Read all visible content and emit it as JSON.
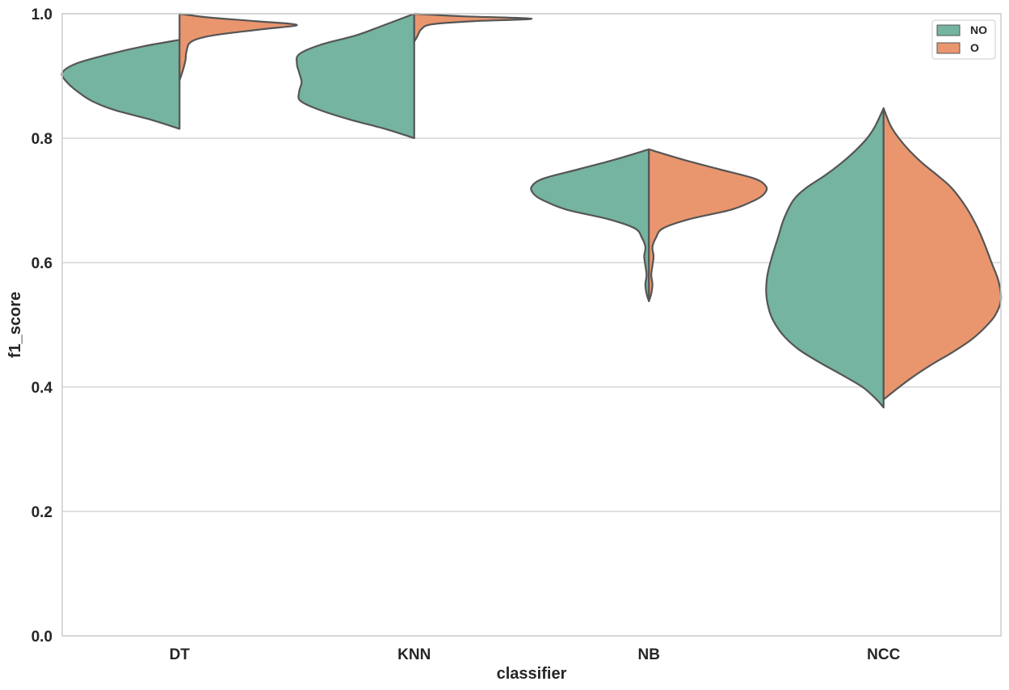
{
  "chart_data": {
    "type": "violin",
    "split": true,
    "title": "",
    "xlabel": "classifier",
    "ylabel": "f1_score",
    "categories": [
      "DT",
      "KNN",
      "NB",
      "NCC"
    ],
    "ylim": [
      0.0,
      1.0
    ],
    "yticks": [
      {
        "value": 0.0,
        "label": "0.0"
      },
      {
        "value": 0.2,
        "label": "0.2"
      },
      {
        "value": 0.4,
        "label": "0.4"
      },
      {
        "value": 0.6,
        "label": "0.6"
      },
      {
        "value": 0.8,
        "label": "0.8"
      },
      {
        "value": 1.0,
        "label": "1.0"
      }
    ],
    "grid": "horizontal",
    "legend": {
      "position": "top-right",
      "entries": [
        "NO",
        "O"
      ]
    },
    "series": [
      {
        "name": "NO",
        "color": "#74b4a0",
        "side": "left",
        "violins": [
          {
            "category": "DT",
            "min": 0.815,
            "max": 0.958,
            "mode": 0.91,
            "profile": [
              [
                0.815,
                0.0
              ],
              [
                0.83,
                0.25
              ],
              [
                0.845,
                0.55
              ],
              [
                0.86,
                0.75
              ],
              [
                0.875,
                0.87
              ],
              [
                0.89,
                0.96
              ],
              [
                0.905,
                1.0
              ],
              [
                0.92,
                0.88
              ],
              [
                0.935,
                0.6
              ],
              [
                0.948,
                0.3
              ],
              [
                0.958,
                0.0
              ]
            ]
          },
          {
            "category": "KNN",
            "min": 0.8,
            "max": 1.0,
            "mode": 0.93,
            "profile": [
              [
                0.8,
                0.0
              ],
              [
                0.815,
                0.25
              ],
              [
                0.83,
                0.55
              ],
              [
                0.845,
                0.8
              ],
              [
                0.86,
                0.97
              ],
              [
                0.875,
                0.98
              ],
              [
                0.89,
                0.96
              ],
              [
                0.905,
                0.98
              ],
              [
                0.92,
                1.0
              ],
              [
                0.935,
                0.98
              ],
              [
                0.95,
                0.8
              ],
              [
                0.965,
                0.5
              ],
              [
                0.98,
                0.28
              ],
              [
                1.0,
                0.0
              ]
            ]
          },
          {
            "category": "NB",
            "min": 0.538,
            "max": 0.782,
            "mode": 0.722,
            "profile": [
              [
                0.538,
                0.0
              ],
              [
                0.55,
                0.02
              ],
              [
                0.565,
                0.03
              ],
              [
                0.58,
                0.02
              ],
              [
                0.595,
                0.03
              ],
              [
                0.61,
                0.04
              ],
              [
                0.625,
                0.03
              ],
              [
                0.64,
                0.06
              ],
              [
                0.655,
                0.12
              ],
              [
                0.67,
                0.35
              ],
              [
                0.685,
                0.7
              ],
              [
                0.7,
                0.9
              ],
              [
                0.71,
                0.98
              ],
              [
                0.722,
                1.0
              ],
              [
                0.735,
                0.9
              ],
              [
                0.75,
                0.6
              ],
              [
                0.765,
                0.3
              ],
              [
                0.782,
                0.0
              ]
            ]
          },
          {
            "category": "NCC",
            "min": 0.367,
            "max": 0.848,
            "mode": 0.55,
            "profile": [
              [
                0.367,
                0.0
              ],
              [
                0.38,
                0.06
              ],
              [
                0.4,
                0.18
              ],
              [
                0.42,
                0.36
              ],
              [
                0.44,
                0.55
              ],
              [
                0.46,
                0.72
              ],
              [
                0.48,
                0.84
              ],
              [
                0.5,
                0.92
              ],
              [
                0.52,
                0.97
              ],
              [
                0.55,
                1.0
              ],
              [
                0.58,
                0.99
              ],
              [
                0.61,
                0.95
              ],
              [
                0.64,
                0.9
              ],
              [
                0.67,
                0.85
              ],
              [
                0.7,
                0.77
              ],
              [
                0.72,
                0.66
              ],
              [
                0.74,
                0.5
              ],
              [
                0.76,
                0.36
              ],
              [
                0.78,
                0.24
              ],
              [
                0.8,
                0.14
              ],
              [
                0.82,
                0.07
              ],
              [
                0.848,
                0.0
              ]
            ]
          }
        ]
      },
      {
        "name": "O",
        "color": "#e9966f",
        "side": "right",
        "violins": [
          {
            "category": "DT",
            "min": 0.893,
            "max": 1.0,
            "mode": 0.982,
            "profile": [
              [
                0.893,
                0.0
              ],
              [
                0.91,
                0.03
              ],
              [
                0.925,
                0.05
              ],
              [
                0.94,
                0.06
              ],
              [
                0.955,
                0.1
              ],
              [
                0.965,
                0.28
              ],
              [
                0.975,
                0.7
              ],
              [
                0.982,
                1.0
              ],
              [
                0.988,
                0.65
              ],
              [
                0.994,
                0.25
              ],
              [
                1.0,
                0.0
              ]
            ]
          },
          {
            "category": "KNN",
            "min": 0.955,
            "max": 1.0,
            "mode": 0.992,
            "profile": [
              [
                0.955,
                0.0
              ],
              [
                0.965,
                0.03
              ],
              [
                0.975,
                0.06
              ],
              [
                0.983,
                0.15
              ],
              [
                0.988,
                0.5
              ],
              [
                0.992,
                1.0
              ],
              [
                0.996,
                0.4
              ],
              [
                1.0,
                0.0
              ]
            ]
          },
          {
            "category": "NB",
            "min": 0.538,
            "max": 0.782,
            "mode": 0.722,
            "profile": [
              [
                0.538,
                0.0
              ],
              [
                0.55,
                0.02
              ],
              [
                0.565,
                0.03
              ],
              [
                0.58,
                0.02
              ],
              [
                0.595,
                0.03
              ],
              [
                0.61,
                0.04
              ],
              [
                0.625,
                0.03
              ],
              [
                0.64,
                0.06
              ],
              [
                0.655,
                0.12
              ],
              [
                0.67,
                0.35
              ],
              [
                0.685,
                0.7
              ],
              [
                0.7,
                0.9
              ],
              [
                0.71,
                0.98
              ],
              [
                0.722,
                1.0
              ],
              [
                0.735,
                0.9
              ],
              [
                0.75,
                0.6
              ],
              [
                0.765,
                0.3
              ],
              [
                0.782,
                0.0
              ]
            ]
          },
          {
            "category": "NCC",
            "min": 0.38,
            "max": 0.848,
            "mode": 0.54,
            "profile": [
              [
                0.38,
                0.0
              ],
              [
                0.395,
                0.1
              ],
              [
                0.415,
                0.24
              ],
              [
                0.435,
                0.4
              ],
              [
                0.455,
                0.58
              ],
              [
                0.475,
                0.74
              ],
              [
                0.495,
                0.86
              ],
              [
                0.515,
                0.95
              ],
              [
                0.54,
                1.0
              ],
              [
                0.57,
                0.98
              ],
              [
                0.6,
                0.92
              ],
              [
                0.63,
                0.86
              ],
              [
                0.66,
                0.79
              ],
              [
                0.69,
                0.7
              ],
              [
                0.72,
                0.58
              ],
              [
                0.74,
                0.46
              ],
              [
                0.76,
                0.33
              ],
              [
                0.78,
                0.22
              ],
              [
                0.8,
                0.13
              ],
              [
                0.82,
                0.06
              ],
              [
                0.848,
                0.0
              ]
            ]
          }
        ]
      }
    ],
    "max_halfwidth_units": 0.5
  },
  "colors": {
    "grid": "#cccccc",
    "axes": "#cccccc",
    "outline": "#555555",
    "text": "#262626"
  }
}
